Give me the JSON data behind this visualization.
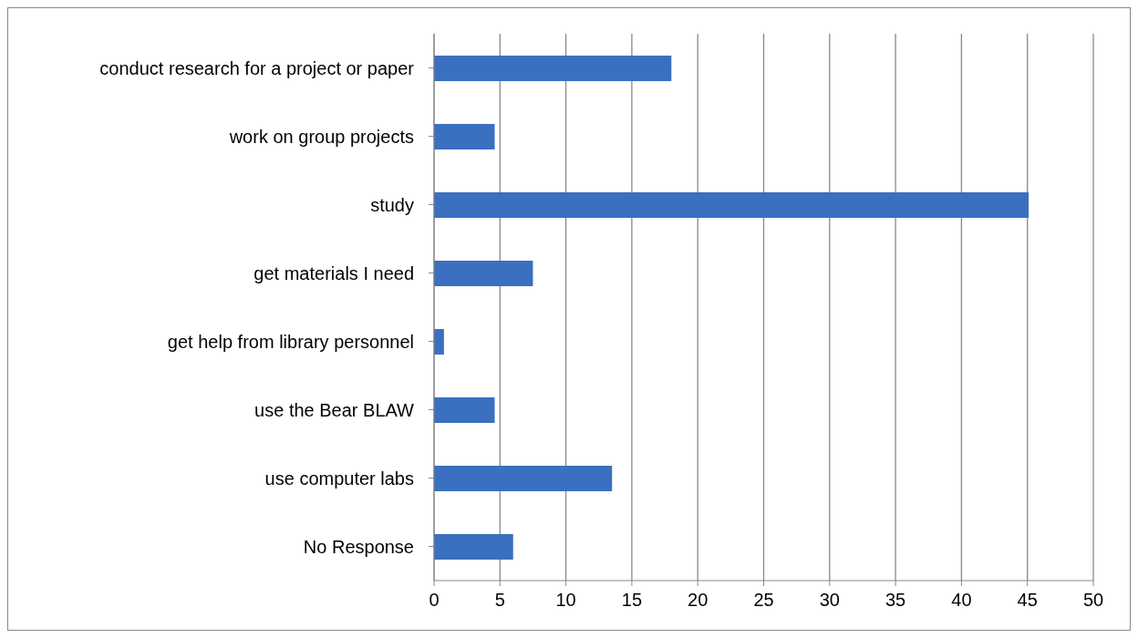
{
  "chart_data": {
    "type": "bar",
    "orientation": "horizontal",
    "categories": [
      "conduct research for a project or paper",
      "work on group projects",
      "study",
      "get materials I need",
      "get help from library personnel",
      "use the Bear BLAW",
      "use computer labs",
      "No Response"
    ],
    "values": [
      18,
      4.6,
      45.1,
      7.5,
      0.75,
      4.6,
      13.5,
      6
    ],
    "color": "#3b6fbf",
    "xlim": [
      0,
      50
    ],
    "xticks": [
      0,
      5,
      10,
      15,
      20,
      25,
      30,
      35,
      40,
      45,
      50
    ],
    "grid": "x"
  }
}
